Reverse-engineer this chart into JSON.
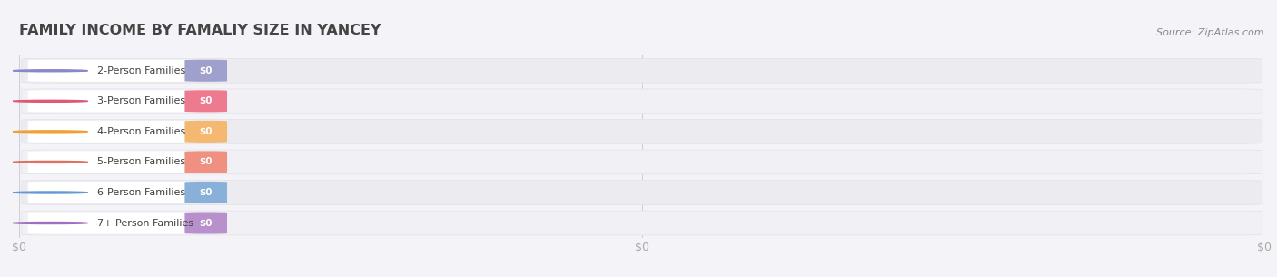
{
  "title": "FAMILY INCOME BY FAMALIY SIZE IN YANCEY",
  "source": "Source: ZipAtlas.com",
  "categories": [
    "2-Person Families",
    "3-Person Families",
    "4-Person Families",
    "5-Person Families",
    "6-Person Families",
    "7+ Person Families"
  ],
  "values": [
    0,
    0,
    0,
    0,
    0,
    0
  ],
  "bar_colors": [
    "#a0a0cc",
    "#ee7a90",
    "#f5b870",
    "#f09080",
    "#88b0d8",
    "#b890cc"
  ],
  "circle_colors": [
    "#8888c8",
    "#e05878",
    "#f0a030",
    "#e07060",
    "#6098d0",
    "#a070c0"
  ],
  "bg_color": "#f4f4f8",
  "row_bg_color": "#ebebf0",
  "row_alt_bg_color": "#f0f0f5",
  "inner_pill_color": "#ffffff",
  "grid_color": "#d0d0dc",
  "title_color": "#444444",
  "source_color": "#888888",
  "label_color": "#404040",
  "value_color": "#ffffff",
  "xtick_color": "#aaaaaa",
  "xtick_labels": [
    "$0",
    "$0",
    "$0"
  ],
  "xtick_positions": [
    0.0,
    0.5,
    1.0
  ],
  "figsize": [
    14.06,
    3.05
  ],
  "dpi": 100
}
